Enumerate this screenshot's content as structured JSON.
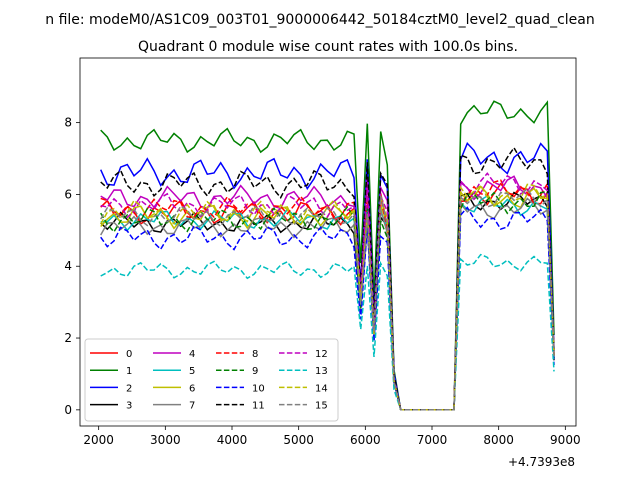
{
  "chart_data": {
    "type": "line",
    "title": "Quadrant 0 module wise count rates with 100.0s bins.",
    "suptitle": "n file: modeM0/AS1C09_003T01_9000006442_50184cztM0_level2_quad_clean",
    "xlabel": "",
    "ylabel": "",
    "x_offset_label": "+4.7393e8",
    "xlim": [
      1720,
      9160
    ],
    "ylim": [
      -0.45,
      9.8
    ],
    "xticks": [
      2000,
      3000,
      4000,
      5000,
      6000,
      7000,
      8000,
      9000
    ],
    "yticks": [
      0,
      2,
      4,
      6,
      8
    ],
    "x": [
      2030,
      2130,
      2230,
      2330,
      2430,
      2530,
      2630,
      2730,
      2830,
      2930,
      3030,
      3130,
      3230,
      3330,
      3430,
      3530,
      3630,
      3730,
      3830,
      3930,
      4030,
      4130,
      4230,
      4330,
      4430,
      4530,
      4630,
      4730,
      4830,
      4930,
      5030,
      5130,
      5230,
      5330,
      5430,
      5530,
      5630,
      5730,
      5830,
      5930,
      6030,
      6130,
      6230,
      6330,
      6430,
      6530,
      6630,
      6730,
      6830,
      6930,
      7030,
      7130,
      7230,
      7330,
      7430,
      7530,
      7630,
      7730,
      7830,
      7930,
      8030,
      8130,
      8230,
      8330,
      8430,
      8530,
      8630,
      8730,
      8830
    ],
    "gap_pattern": [
      1,
      1,
      1,
      1,
      1,
      1,
      1,
      1,
      1,
      1,
      1,
      1,
      1,
      1,
      1,
      1,
      1,
      1,
      1,
      1,
      1,
      1,
      1,
      1,
      1,
      1,
      1,
      1,
      1,
      1,
      1,
      1,
      1,
      1,
      1,
      1,
      1,
      1,
      1,
      0.55,
      1.05,
      0.4,
      1.05,
      0.95,
      0.15,
      0,
      0,
      0,
      0,
      0,
      0,
      0,
      0,
      0,
      1,
      1,
      1,
      1,
      1,
      1,
      1,
      1,
      1,
      1,
      1,
      1,
      1,
      1,
      0.25
    ],
    "series": [
      {
        "name": "0",
        "color": "#ff0000",
        "dash": "solid",
        "base": 5.5,
        "amp": 0.35,
        "post": 6.0,
        "phase": 0.3
      },
      {
        "name": "1",
        "color": "#008000",
        "dash": "solid",
        "base": 7.5,
        "amp": 0.35,
        "post": 8.3,
        "phase": 1.1
      },
      {
        "name": "2",
        "color": "#0000ff",
        "dash": "solid",
        "base": 6.6,
        "amp": 0.45,
        "post": 7.0,
        "phase": 2.0
      },
      {
        "name": "3",
        "color": "#000000",
        "dash": "solid",
        "base": 5.2,
        "amp": 0.3,
        "post": 5.8,
        "phase": 2.7
      },
      {
        "name": "4",
        "color": "#bf00bf",
        "dash": "solid",
        "base": 5.9,
        "amp": 0.35,
        "post": 6.2,
        "phase": 3.4
      },
      {
        "name": "5",
        "color": "#00bfbf",
        "dash": "solid",
        "base": 5.3,
        "amp": 0.3,
        "post": 5.7,
        "phase": 4.1
      },
      {
        "name": "6",
        "color": "#bfbf00",
        "dash": "solid",
        "base": 5.4,
        "amp": 0.35,
        "post": 5.9,
        "phase": 4.8
      },
      {
        "name": "7",
        "color": "#808080",
        "dash": "solid",
        "base": 5.1,
        "amp": 0.3,
        "post": 5.6,
        "phase": 5.5
      },
      {
        "name": "8",
        "color": "#ff0000",
        "dash": "dashed",
        "base": 5.6,
        "amp": 0.35,
        "post": 6.1,
        "phase": 0.8
      },
      {
        "name": "9",
        "color": "#008000",
        "dash": "dashed",
        "base": 5.3,
        "amp": 0.35,
        "post": 5.8,
        "phase": 1.6
      },
      {
        "name": "10",
        "color": "#0000ff",
        "dash": "dashed",
        "base": 4.8,
        "amp": 0.35,
        "post": 5.3,
        "phase": 2.4
      },
      {
        "name": "11",
        "color": "#000000",
        "dash": "dashed",
        "base": 6.3,
        "amp": 0.4,
        "post": 6.9,
        "phase": 3.1
      },
      {
        "name": "12",
        "color": "#bf00bf",
        "dash": "dashed",
        "base": 5.7,
        "amp": 0.35,
        "post": 6.3,
        "phase": 3.9
      },
      {
        "name": "13",
        "color": "#00bfbf",
        "dash": "dashed",
        "base": 3.9,
        "amp": 0.25,
        "post": 4.1,
        "phase": 4.6
      },
      {
        "name": "14",
        "color": "#bfbf00",
        "dash": "dashed",
        "base": 5.5,
        "amp": 0.35,
        "post": 6.0,
        "phase": 5.2
      },
      {
        "name": "15",
        "color": "#808080",
        "dash": "dashed",
        "base": 5.4,
        "amp": 0.3,
        "post": 5.9,
        "phase": 5.9
      }
    ],
    "legend": {
      "placement": "lower-left",
      "ncol": 4
    }
  }
}
